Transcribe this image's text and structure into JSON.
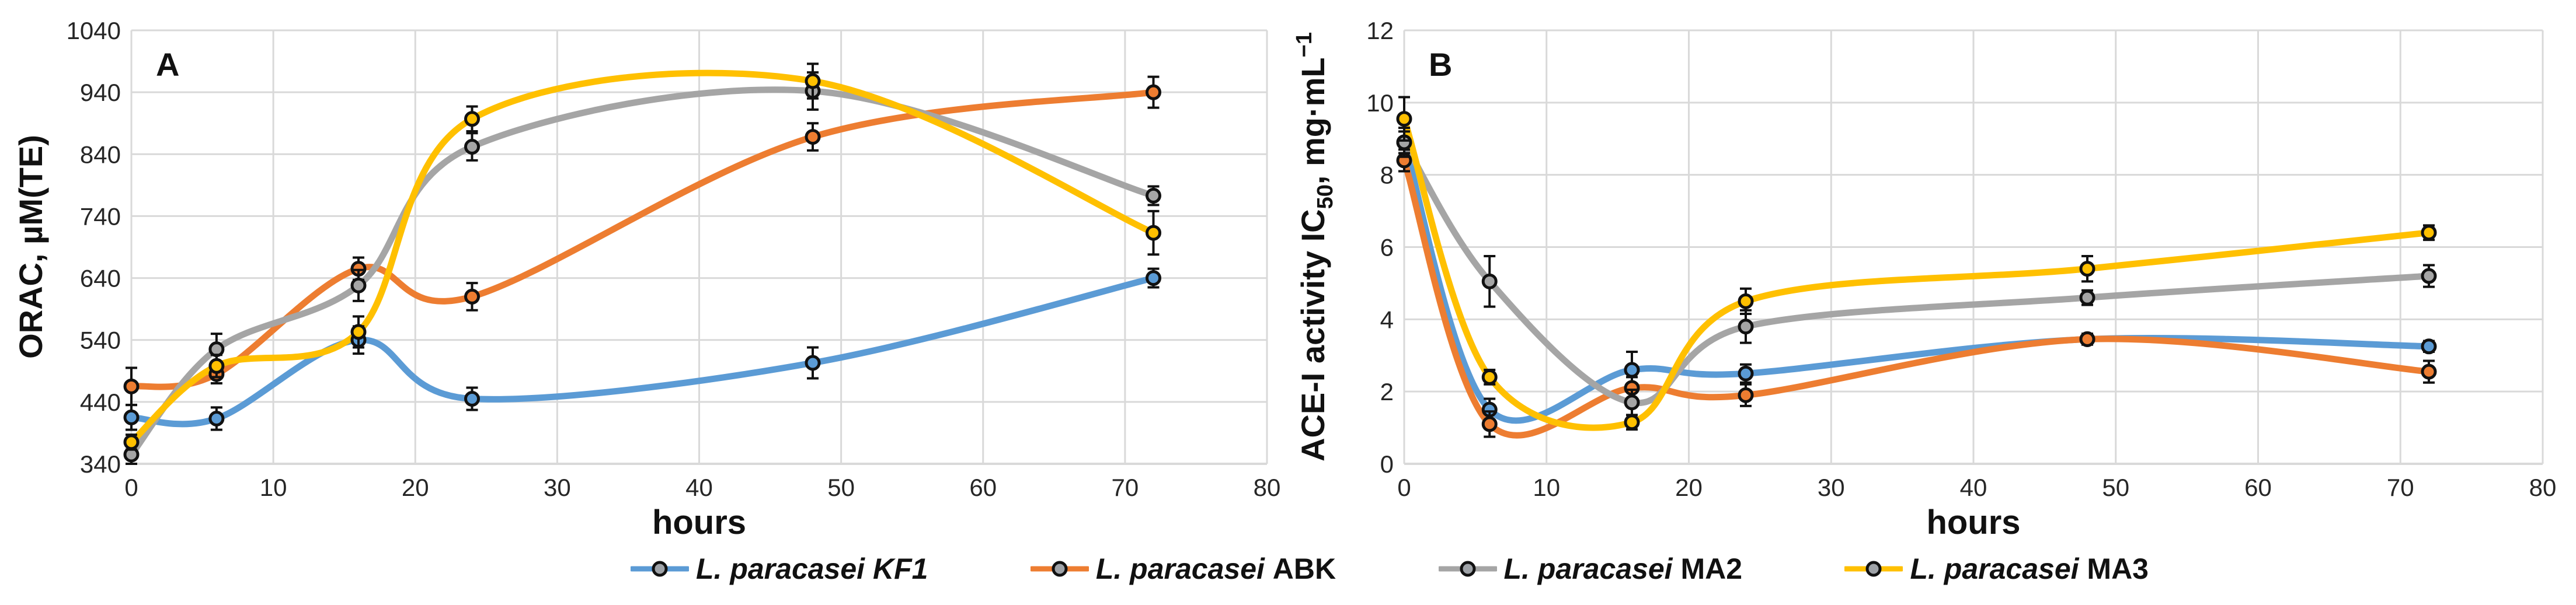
{
  "colors": {
    "kf1": "#5B9BD5",
    "abk": "#ED7D31",
    "ma2": "#A5A5A5",
    "ma3": "#FFC000",
    "grid": "#D9D9D9",
    "axis": "#262626"
  },
  "legend": {
    "items": [
      {
        "species": "L. paracasei",
        "strain": "KF1",
        "strain_italic": true,
        "color_key": "kf1"
      },
      {
        "species": "L. paracasei",
        "strain": "ABK",
        "strain_italic": false,
        "color_key": "abk"
      },
      {
        "species": "L. paracasei",
        "strain": "MA2",
        "strain_italic": false,
        "color_key": "ma2"
      },
      {
        "species": "L. paracasei",
        "strain": "MA3",
        "strain_italic": false,
        "color_key": "ma3"
      }
    ]
  },
  "chart_data": [
    {
      "type": "line",
      "panel_label": "A",
      "title": "",
      "xlabel": "hours",
      "ylabel": "ORAC, µM(TE)",
      "xlim": [
        0,
        80
      ],
      "ylim": [
        340,
        1040
      ],
      "xticks": [
        0,
        10,
        20,
        30,
        40,
        50,
        60,
        70,
        80
      ],
      "yticks": [
        340,
        440,
        540,
        640,
        740,
        840,
        940,
        1040
      ],
      "grid": true,
      "x": [
        0,
        6,
        16,
        24,
        48,
        72
      ],
      "series": [
        {
          "name": "L. paracasei KF1",
          "color_key": "kf1",
          "values": [
            415,
            413,
            540,
            445,
            503,
            640
          ],
          "errors": [
            20,
            18,
            22,
            18,
            25,
            15
          ]
        },
        {
          "name": "L. paracasei ABK",
          "color_key": "abk",
          "values": [
            465,
            485,
            655,
            610,
            868,
            940
          ],
          "errors": [
            30,
            15,
            18,
            22,
            22,
            25
          ]
        },
        {
          "name": "L. paracasei MA2",
          "color_key": "ma2",
          "values": [
            355,
            525,
            628,
            852,
            942,
            773
          ],
          "errors": [
            15,
            25,
            25,
            22,
            30,
            15
          ]
        },
        {
          "name": "L. paracasei MA3",
          "color_key": "ma3",
          "values": [
            375,
            498,
            553,
            897,
            958,
            713
          ],
          "errors": [
            12,
            18,
            25,
            20,
            28,
            35
          ]
        }
      ]
    },
    {
      "type": "line",
      "panel_label": "B",
      "title": "",
      "xlabel": "hours",
      "ylabel_main": "ACE-I activity IC",
      "ylabel_sub": "50",
      "ylabel_units": ", mg·mL",
      "ylabel_sup": "−1",
      "xlim": [
        0,
        80
      ],
      "ylim": [
        0,
        12
      ],
      "xticks": [
        0,
        10,
        20,
        30,
        40,
        50,
        60,
        70,
        80
      ],
      "yticks": [
        0,
        2,
        4,
        6,
        8,
        10,
        12
      ],
      "grid": true,
      "x": [
        0,
        6,
        16,
        24,
        48,
        72
      ],
      "series": [
        {
          "name": "L. paracasei KF1",
          "color_key": "kf1",
          "values": [
            8.9,
            1.5,
            2.6,
            2.5,
            3.45,
            3.25
          ],
          "errors": [
            0.3,
            0.3,
            0.5,
            0.25,
            0.15,
            0.15
          ]
        },
        {
          "name": "L. paracasei ABK",
          "color_key": "abk",
          "values": [
            8.4,
            1.1,
            2.1,
            1.9,
            3.45,
            2.55
          ],
          "errors": [
            0.3,
            0.35,
            0.3,
            0.3,
            0.15,
            0.3
          ]
        },
        {
          "name": "L. paracasei MA2",
          "color_key": "ma2",
          "values": [
            8.9,
            5.05,
            1.7,
            3.8,
            4.6,
            5.2
          ],
          "errors": [
            0.4,
            0.7,
            0.35,
            0.45,
            0.2,
            0.3
          ]
        },
        {
          "name": "L. paracasei MA3",
          "color_key": "ma3",
          "values": [
            9.55,
            2.4,
            1.15,
            4.5,
            5.4,
            6.4
          ],
          "errors": [
            0.6,
            0.2,
            0.2,
            0.35,
            0.35,
            0.2
          ]
        }
      ]
    }
  ]
}
